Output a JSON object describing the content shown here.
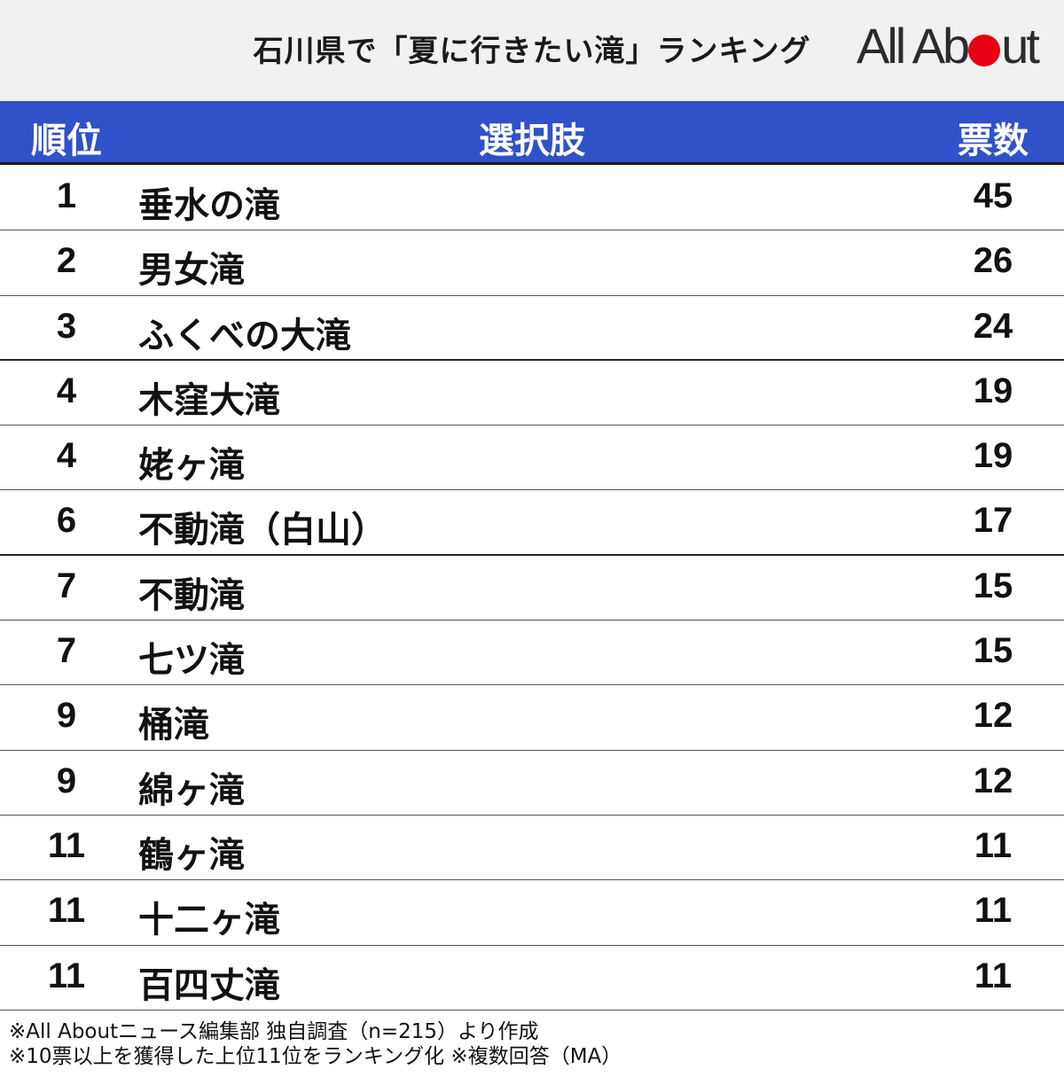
{
  "title": "石川県で「夏に行きたい滝」ランキング",
  "logo": {
    "text_left": "All Ab",
    "text_right": "ut",
    "dot_color": "#e60012"
  },
  "colors": {
    "header_bg": "#2f52c9",
    "header_text": "#ffffff",
    "accent_red": "#e60012"
  },
  "table": {
    "headers": {
      "rank": "順位",
      "choice": "選択肢",
      "votes": "票数"
    },
    "rows": [
      {
        "rank": "1",
        "choice": "垂水の滝",
        "votes": "45"
      },
      {
        "rank": "2",
        "choice": "男女滝",
        "votes": "26"
      },
      {
        "rank": "3",
        "choice": "ふくべの大滝",
        "votes": "24"
      },
      {
        "rank": "4",
        "choice": "木窪大滝",
        "votes": "19"
      },
      {
        "rank": "4",
        "choice": "姥ヶ滝",
        "votes": "19"
      },
      {
        "rank": "6",
        "choice": "不動滝（白山）",
        "votes": "17"
      },
      {
        "rank": "7",
        "choice": "不動滝",
        "votes": "15"
      },
      {
        "rank": "7",
        "choice": "七ツ滝",
        "votes": "15"
      },
      {
        "rank": "9",
        "choice": "桶滝",
        "votes": "12"
      },
      {
        "rank": "9",
        "choice": "綿ヶ滝",
        "votes": "12"
      },
      {
        "rank": "11",
        "choice": "鶴ヶ滝",
        "votes": "11"
      },
      {
        "rank": "11",
        "choice": "十二ヶ滝",
        "votes": "11"
      },
      {
        "rank": "11",
        "choice": "百四丈滝",
        "votes": "11"
      }
    ]
  },
  "notes": [
    "※All Aboutニュース編集部 独自調査（n=215）より作成",
    "※10票以上を獲得した上位11位をランキング化 ※複数回答（MA）"
  ]
}
